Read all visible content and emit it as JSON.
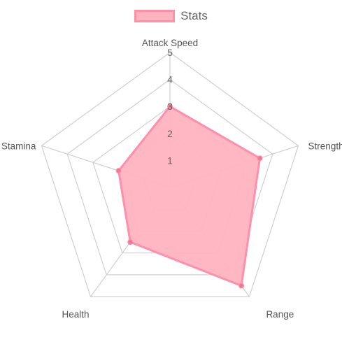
{
  "legend": {
    "label": "Stats",
    "swatch_fill": "#ffb3c1",
    "swatch_border": "#ff8fab"
  },
  "chart_data": {
    "type": "radar",
    "categories": [
      "Attack Speed",
      "Strength",
      "Range",
      "Health",
      "Stamina"
    ],
    "series": [
      {
        "name": "Stats",
        "values": [
          3,
          3.5,
          4.5,
          2.5,
          2
        ],
        "fill": "#ffb3c1",
        "stroke": "#ff8fab",
        "point_color": "#f07a95"
      }
    ],
    "rlim": [
      0,
      5
    ],
    "ticks": [
      "1",
      "2",
      "3",
      "4",
      "5"
    ],
    "grid": true,
    "legend_position": "top"
  }
}
